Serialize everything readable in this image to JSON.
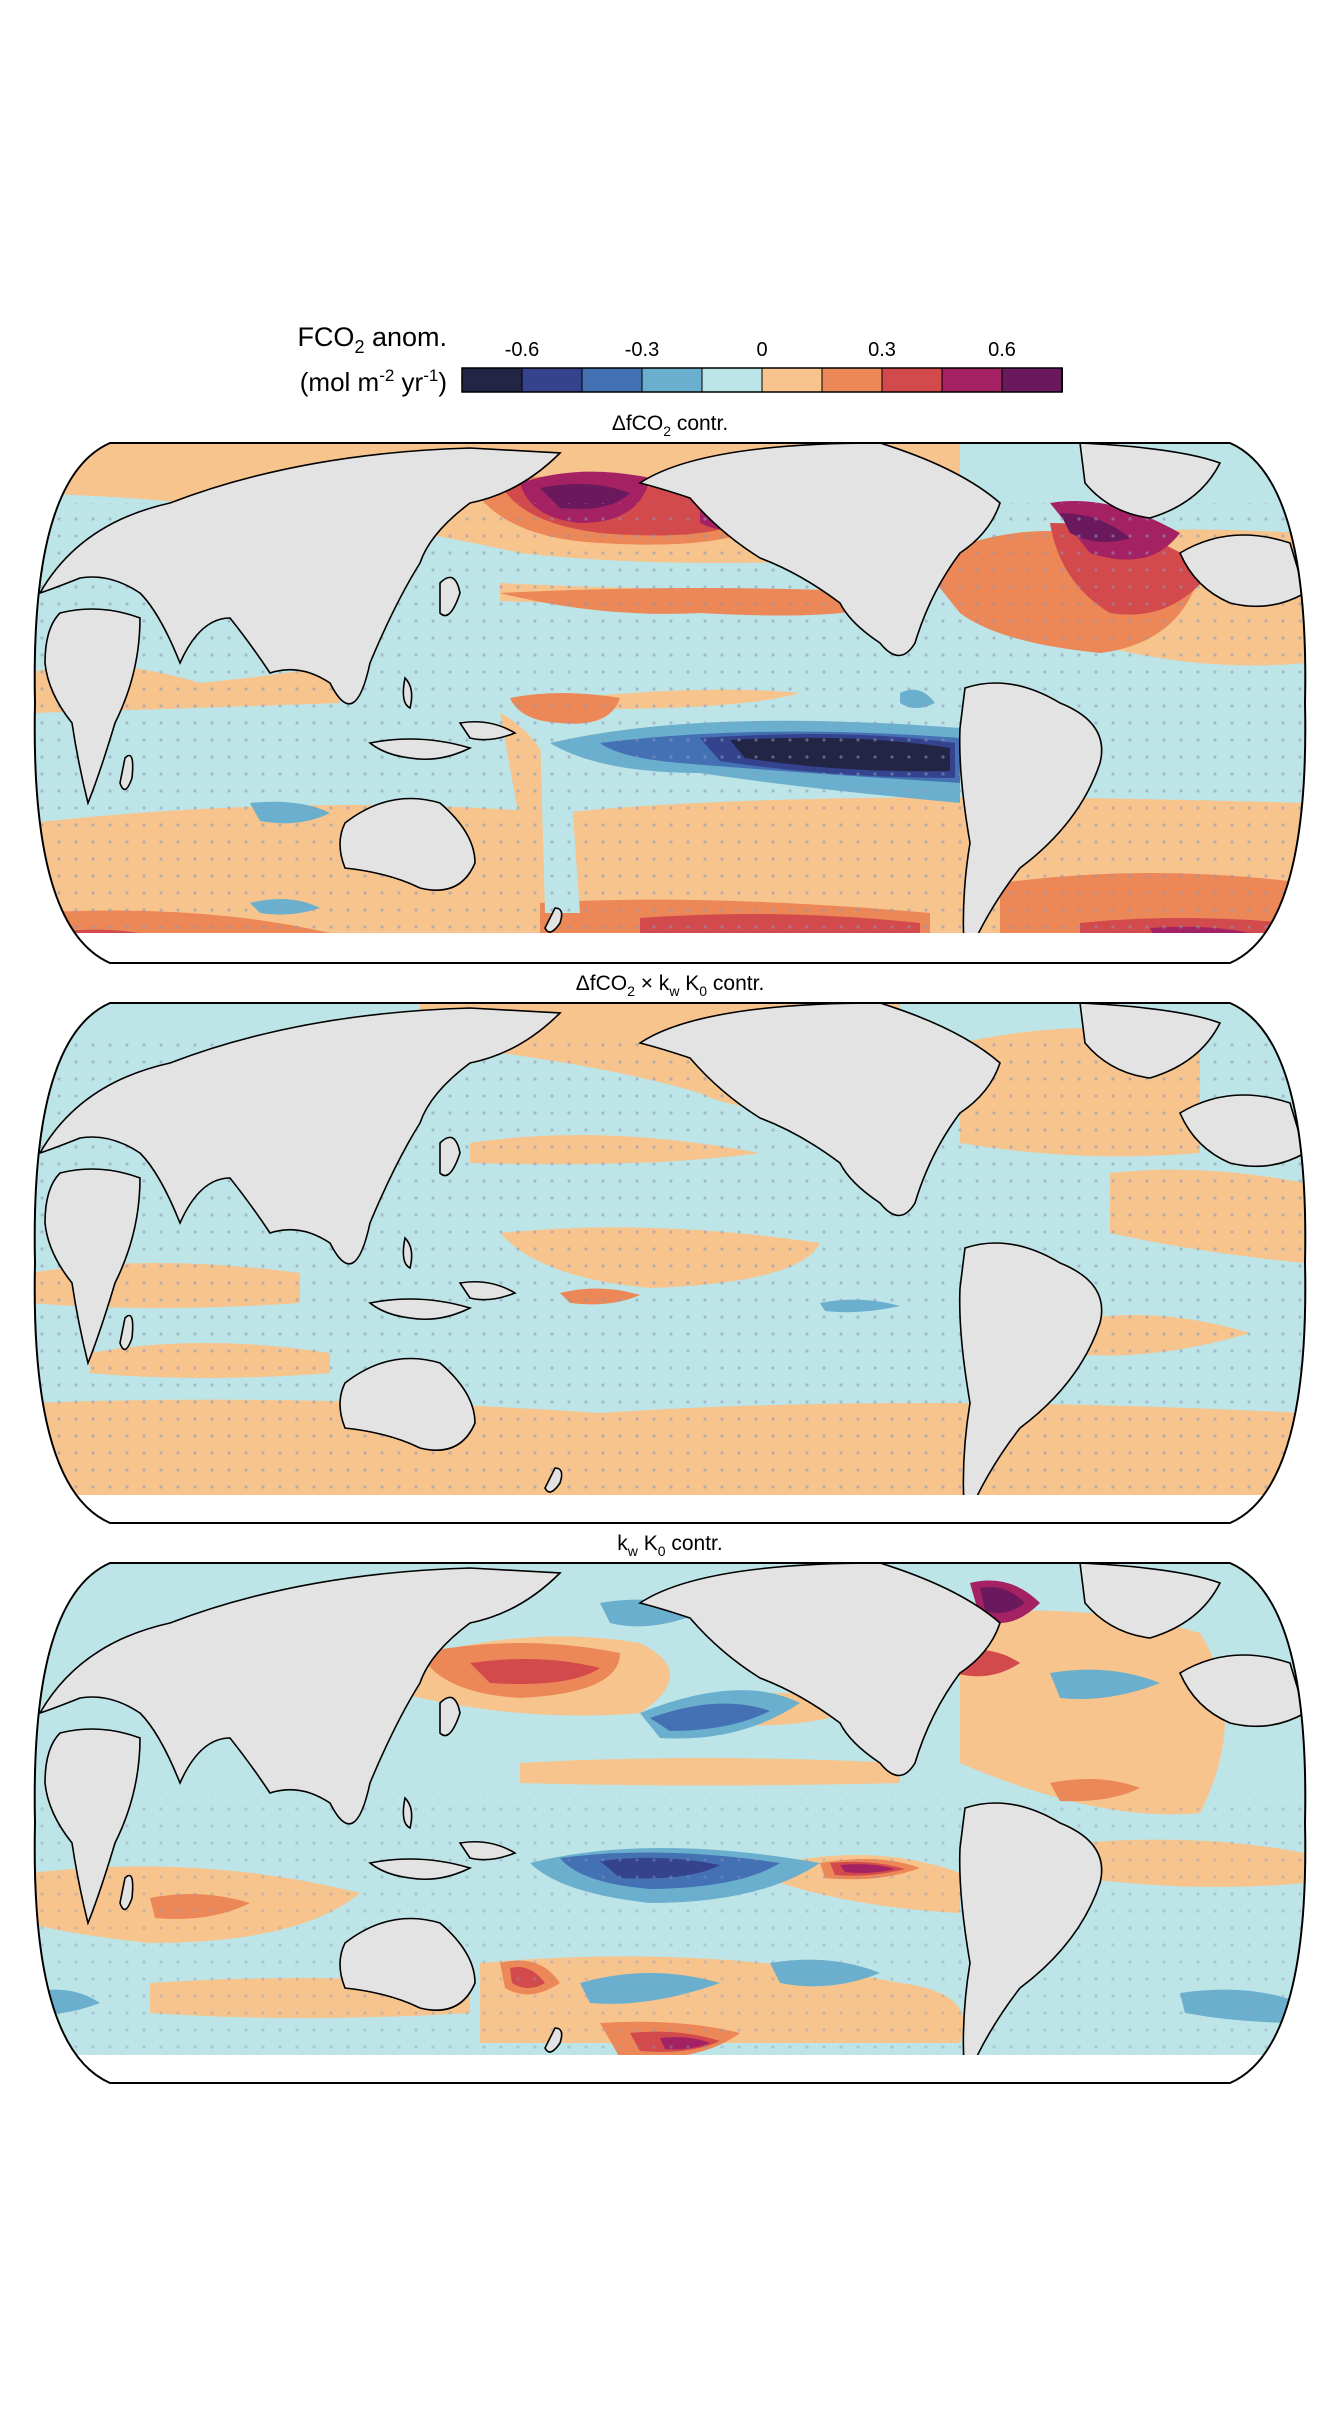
{
  "colorbar": {
    "title_main": "FCO",
    "title_sub": "2",
    "title_rest": " anom.",
    "units_open": "(mol m",
    "units_exp1": "-2",
    "units_mid": " yr",
    "units_exp2": "-1",
    "units_close": ")",
    "colors": [
      "#222544",
      "#35438f",
      "#4470b4",
      "#6aafcd",
      "#bde4e6",
      "#f7c48d",
      "#ec8757",
      "#d24a4b",
      "#a42263",
      "#6a1a5c"
    ],
    "ticks": [
      {
        "value": -0.6,
        "label": "-0.6"
      },
      {
        "value": -0.3,
        "label": "-0.3"
      },
      {
        "value": 0,
        "label": "0"
      },
      {
        "value": 0.3,
        "label": "0.3"
      },
      {
        "value": 0.6,
        "label": "0.6"
      }
    ],
    "range": [
      -0.75,
      0.75
    ]
  },
  "panels": [
    {
      "id": "dfco2",
      "t1": "ΔfCO",
      "s1": "2",
      "t2": " contr.",
      "s2": "",
      "t3": "",
      "s3": "",
      "t4": ""
    },
    {
      "id": "dfco2-kwk0",
      "t1": "ΔfCO",
      "s1": "2",
      "t2": " × k",
      "s2": "w",
      "t3": " K",
      "s3": "0",
      "t4": " contr."
    },
    {
      "id": "kwk0",
      "t1": "k",
      "s1": "w",
      "t2": " K",
      "s2": "0",
      "t3": " contr.",
      "s3": "",
      "t4": ""
    }
  ],
  "map_style": {
    "land": "#e3e3e3",
    "ocean_base": "#bde4e6",
    "coast": "#000000",
    "stipple": "#8a9ab8"
  }
}
